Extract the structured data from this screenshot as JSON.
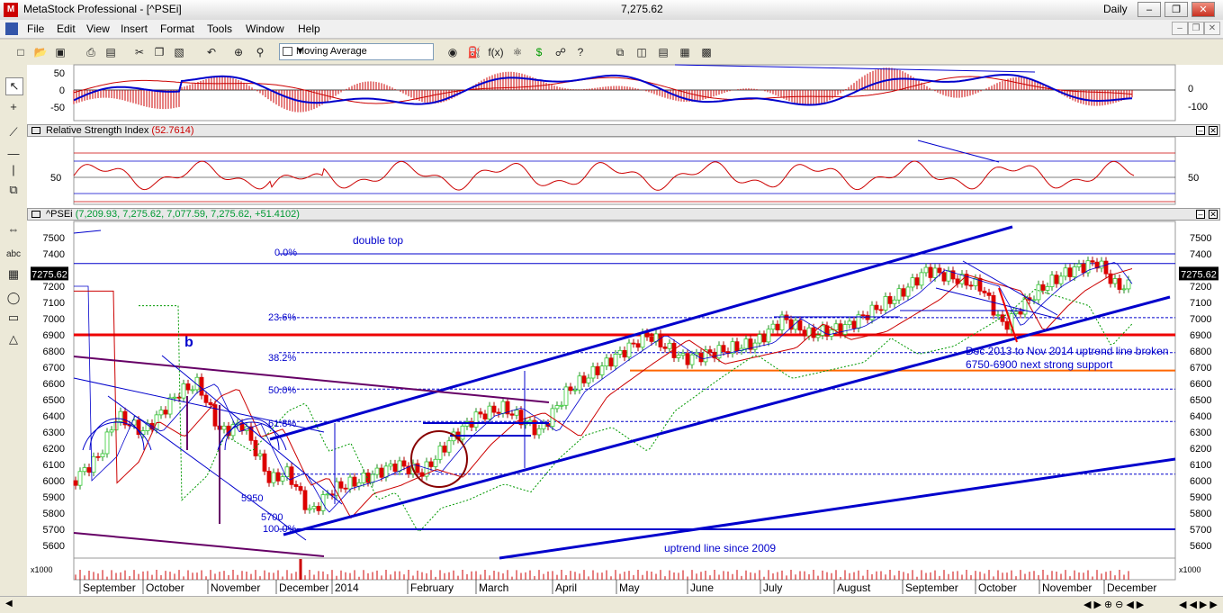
{
  "window": {
    "title": "MetaStock Professional - [^PSEi]",
    "value": "7,275.62",
    "period": "Daily"
  },
  "menu": [
    "File",
    "Edit",
    "View",
    "Insert",
    "Format",
    "Tools",
    "Window",
    "Help"
  ],
  "toolbar": {
    "indicator_select": "Moving Average"
  },
  "macd_pane": {
    "axis_left": [
      "50",
      "0",
      "-50"
    ],
    "axis_right": [
      "0",
      "-100"
    ]
  },
  "rsi_pane": {
    "title": "Relative Strength Index",
    "value": "(52.7614)",
    "axis_label": "50"
  },
  "price_pane": {
    "title": "^PSEi",
    "values": "(7,209.93, 7,275.62, 7,077.59, 7,275.62, +51.4102)",
    "last_value": "7275.62"
  },
  "price_axis": [
    "7500",
    "7400",
    "7300",
    "7200",
    "7100",
    "7000",
    "6900",
    "6800",
    "6700",
    "6600",
    "6500",
    "6400",
    "6300",
    "6200",
    "6100",
    "6000",
    "5900",
    "5800",
    "5700",
    "5600"
  ],
  "price_axis_right": [
    "7500",
    "7400",
    "7200",
    "7100",
    "7000",
    "6900",
    "6800",
    "6700",
    "6600",
    "6500",
    "6400",
    "6300",
    "6200",
    "6100",
    "6000",
    "5900",
    "5800",
    "5700",
    "5600"
  ],
  "volume_unit": "x1000",
  "months": [
    "September",
    "October",
    "November",
    "December",
    "2014",
    "February",
    "March",
    "April",
    "May",
    "June",
    "July",
    "August",
    "September",
    "October",
    "November",
    "December"
  ],
  "annotations": {
    "double_top": "double top",
    "fib_0": "0.0%",
    "fib_236": "23.6%",
    "fib_382": "38.2%",
    "fib_50": "50.0%",
    "fib_618": "61.8%",
    "fib_100": "100.0%",
    "wave_b": "b",
    "level_5950": "5950",
    "level_5700": "5700",
    "uptrend_note": "Dec 2013 to Nov 2014 uptrend line broken",
    "support_note": "6750-6900 next strong support",
    "uptrend_2009": "uptrend line since 2009"
  },
  "colors": {
    "up_candle": "#33cc33",
    "down_candle": "#dd0000",
    "trendline": "#0000cc",
    "resistance": "#ee0000",
    "support": "#ff6600",
    "purple_line": "#660066"
  }
}
